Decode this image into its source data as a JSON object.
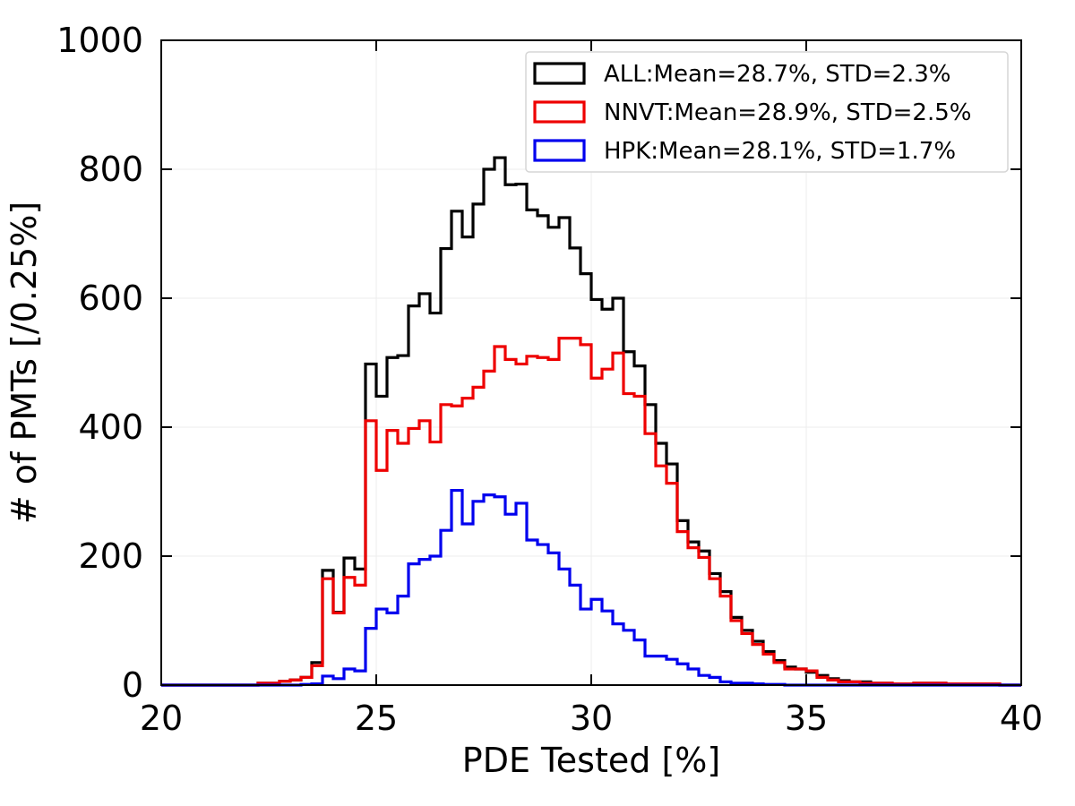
{
  "chart_data": {
    "type": "step-histogram",
    "xlabel": "PDE Tested [%]",
    "ylabel": "# of PMTs [/0.25%]",
    "xlim": [
      20,
      40
    ],
    "ylim": [
      0,
      1000
    ],
    "xticks": [
      "20",
      "25",
      "30",
      "35",
      "40"
    ],
    "yticks": [
      "0",
      "200",
      "400",
      "600",
      "800",
      "1000"
    ],
    "grid": true,
    "legend_position": "top-right",
    "bin_width": 0.25,
    "series": [
      {
        "name": "ALL:Mean=28.7%, STD=2.3%",
        "color": "#000000",
        "x": [
          22.25,
          22.5,
          22.75,
          23.0,
          23.25,
          23.5,
          23.75,
          24.0,
          24.25,
          24.5,
          24.75,
          25.0,
          25.25,
          25.5,
          25.75,
          26.0,
          26.25,
          26.5,
          26.75,
          27.0,
          27.25,
          27.5,
          27.75,
          28.0,
          28.25,
          28.5,
          28.75,
          29.0,
          29.25,
          29.5,
          29.75,
          30.0,
          30.25,
          30.5,
          30.75,
          31.0,
          31.25,
          31.5,
          31.75,
          32.0,
          32.25,
          32.5,
          32.75,
          33.0,
          33.25,
          33.5,
          33.75,
          34.0,
          34.25,
          34.5,
          34.75,
          35.0,
          35.25,
          35.5,
          35.75,
          36.0,
          36.25,
          36.5,
          36.75,
          37.0,
          37.25,
          37.5,
          37.75,
          38.0,
          38.25,
          38.5,
          38.75,
          39.0,
          39.25
        ],
        "values": [
          3,
          3,
          6,
          8,
          12,
          35,
          178,
          113,
          197,
          180,
          498,
          448,
          508,
          511,
          588,
          607,
          577,
          677,
          735,
          695,
          746,
          800,
          818,
          776,
          777,
          737,
          728,
          710,
          725,
          678,
          638,
          598,
          583,
          600,
          517,
          495,
          435,
          375,
          343,
          255,
          222,
          208,
          173,
          145,
          105,
          85,
          68,
          52,
          38,
          28,
          25,
          20,
          15,
          10,
          7,
          5,
          5,
          3,
          3,
          2,
          2,
          3,
          3,
          3,
          2,
          2,
          2,
          2,
          2
        ]
      },
      {
        "name": "NNVT:Mean=28.9%, STD=2.5%",
        "color": "#ee0000",
        "x": [
          22.25,
          22.5,
          22.75,
          23.0,
          23.25,
          23.5,
          23.75,
          24.0,
          24.25,
          24.5,
          24.75,
          25.0,
          25.25,
          25.5,
          25.75,
          26.0,
          26.25,
          26.5,
          26.75,
          27.0,
          27.25,
          27.5,
          27.75,
          28.0,
          28.25,
          28.5,
          28.75,
          29.0,
          29.25,
          29.5,
          29.75,
          30.0,
          30.25,
          30.5,
          30.75,
          31.0,
          31.25,
          31.5,
          31.75,
          32.0,
          32.25,
          32.5,
          32.75,
          33.0,
          33.25,
          33.5,
          33.75,
          34.0,
          34.25,
          34.5,
          34.75,
          35.0,
          35.25,
          35.5,
          35.75,
          36.0,
          36.25,
          36.5,
          36.75,
          37.0,
          37.25,
          37.5,
          37.75,
          38.0,
          38.25,
          38.5,
          38.75,
          39.0,
          39.25
        ],
        "values": [
          3,
          3,
          6,
          8,
          12,
          30,
          165,
          112,
          167,
          155,
          410,
          333,
          395,
          375,
          398,
          410,
          377,
          435,
          433,
          445,
          462,
          487,
          525,
          505,
          498,
          510,
          508,
          505,
          538,
          538,
          528,
          476,
          490,
          515,
          452,
          448,
          390,
          340,
          313,
          238,
          213,
          198,
          165,
          138,
          100,
          80,
          63,
          48,
          35,
          25,
          25,
          22,
          12,
          8,
          5,
          5,
          3,
          3,
          3,
          2,
          2,
          3,
          3,
          3,
          2,
          2,
          2,
          2,
          2
        ]
      },
      {
        "name": "HPK:Mean=28.1%, STD=1.7%",
        "color": "#0000ee",
        "x": [
          22.25,
          22.5,
          22.75,
          23.0,
          23.25,
          23.5,
          23.75,
          24.0,
          24.25,
          24.5,
          24.75,
          25.0,
          25.25,
          25.5,
          25.75,
          26.0,
          26.25,
          26.5,
          26.75,
          27.0,
          27.25,
          27.5,
          27.75,
          28.0,
          28.25,
          28.5,
          28.75,
          29.0,
          29.25,
          29.5,
          29.75,
          30.0,
          30.25,
          30.5,
          30.75,
          31.0,
          31.25,
          31.5,
          31.75,
          32.0,
          32.25,
          32.5,
          32.75,
          33.0,
          33.25,
          33.5,
          33.75,
          34.0,
          34.25,
          34.5,
          34.75,
          35.0,
          35.25,
          35.5,
          35.75,
          36.0,
          36.25,
          36.5,
          36.75,
          37.0,
          37.25,
          37.5,
          37.75,
          38.0,
          38.25,
          38.5,
          38.75,
          39.0,
          39.25
        ],
        "values": [
          0,
          0,
          0,
          0,
          1,
          2,
          14,
          10,
          25,
          22,
          88,
          118,
          112,
          138,
          188,
          195,
          200,
          240,
          302,
          250,
          285,
          295,
          292,
          265,
          282,
          225,
          218,
          205,
          180,
          155,
          118,
          133,
          115,
          95,
          85,
          70,
          45,
          45,
          40,
          33,
          25,
          15,
          12,
          5,
          3,
          3,
          2,
          1,
          1,
          0,
          0,
          0,
          0,
          0,
          0,
          0,
          0,
          0,
          0,
          0,
          0,
          0,
          0,
          0,
          0,
          0,
          0,
          0,
          0
        ]
      }
    ]
  }
}
